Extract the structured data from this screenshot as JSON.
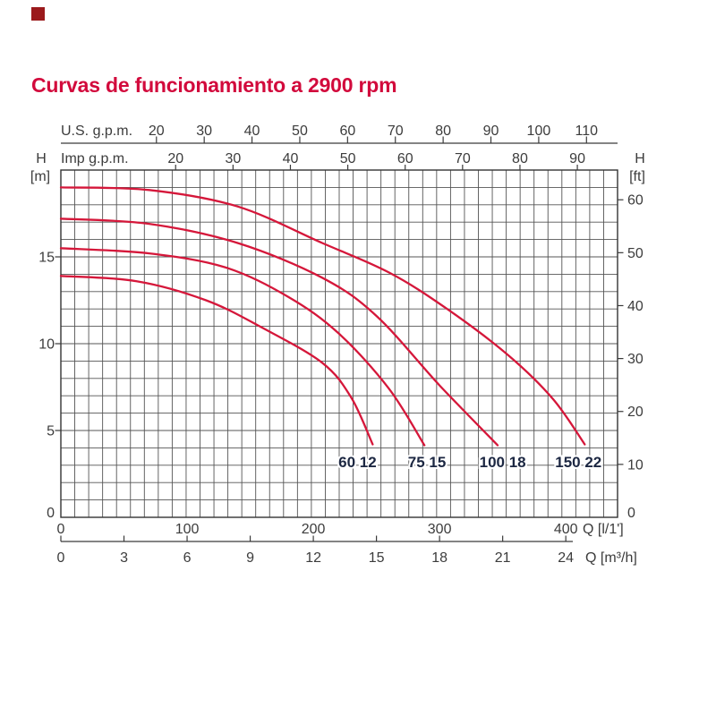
{
  "logo": {
    "color": "#9b1a1c"
  },
  "title": {
    "text": "Curvas de funcionamiento a 2900 rpm",
    "color": "#d20a3c"
  },
  "chart_data": {
    "type": "line",
    "title": "Curvas de funcionamiento a 2900 rpm",
    "x_axes": {
      "us_gpm": {
        "label": "U.S. g.p.m.",
        "ticks": [
          20,
          30,
          40,
          50,
          60,
          70,
          80,
          90,
          100,
          110
        ],
        "lpm_per_unit": 3.7854
      },
      "imp_gpm": {
        "label": "Imp g.p.m.",
        "ticks": [
          20,
          30,
          40,
          50,
          60,
          70,
          80,
          90
        ],
        "lpm_per_unit": 4.5461
      },
      "l_per_min": {
        "label": "Q [l/1']",
        "ticks": [
          0,
          100,
          200,
          300,
          400
        ],
        "lpm_per_unit": 1
      },
      "m3_per_h": {
        "label": "Q [m³/h]",
        "ticks": [
          0,
          3,
          6,
          9,
          12,
          15,
          18,
          21,
          24
        ],
        "lpm_per_unit": 16.6667
      }
    },
    "y_axes": {
      "meters": {
        "label": "H",
        "unit": "[m]",
        "ticks": [
          0,
          5,
          10,
          15
        ],
        "m_per_unit": 1
      },
      "feet": {
        "label": "H",
        "unit": "[ft]",
        "ticks": [
          0,
          10,
          20,
          30,
          40,
          50,
          60
        ],
        "m_per_unit": 0.3048
      }
    },
    "x_range_lpm": [
      0,
      441
    ],
    "y_range_m": [
      0,
      20
    ],
    "grid": {
      "cols": 40,
      "rows": 20
    },
    "series": [
      {
        "name": "60 12",
        "label_center_lpm": 235,
        "label_center_m": 3.2,
        "points_lpm_m": [
          [
            0,
            13.9
          ],
          [
            60,
            13.6
          ],
          [
            115,
            12.5
          ],
          [
            160,
            10.9
          ],
          [
            207,
            8.9
          ],
          [
            230,
            6.9
          ],
          [
            247,
            4.2
          ]
        ]
      },
      {
        "name": "75 15",
        "label_center_lpm": 290,
        "label_center_m": 3.2,
        "points_lpm_m": [
          [
            0,
            15.5
          ],
          [
            70,
            15.2
          ],
          [
            130,
            14.4
          ],
          [
            180,
            12.7
          ],
          [
            220,
            10.6
          ],
          [
            260,
            7.4
          ],
          [
            288,
            4.15
          ]
        ]
      },
      {
        "name": "100 18",
        "label_center_lpm": 350,
        "label_center_m": 3.2,
        "points_lpm_m": [
          [
            0,
            17.2
          ],
          [
            70,
            16.9
          ],
          [
            140,
            15.8
          ],
          [
            207,
            13.8
          ],
          [
            250,
            11.6
          ],
          [
            300,
            7.6
          ],
          [
            346,
            4.15
          ]
        ]
      },
      {
        "name": "150 22",
        "label_center_lpm": 410,
        "label_center_m": 3.2,
        "points_lpm_m": [
          [
            0,
            19.0
          ],
          [
            70,
            18.85
          ],
          [
            140,
            17.9
          ],
          [
            207,
            15.8
          ],
          [
            260,
            14.1
          ],
          [
            306,
            12.0
          ],
          [
            355,
            9.3
          ],
          [
            390,
            6.8
          ],
          [
            415,
            4.2
          ]
        ]
      }
    ],
    "colors": {
      "curve": "#d5173a",
      "grid": "#545454",
      "axis": "#3a3a3a",
      "text": "#3c3c3c",
      "series_label": "#1c2742"
    },
    "legend": "none"
  }
}
